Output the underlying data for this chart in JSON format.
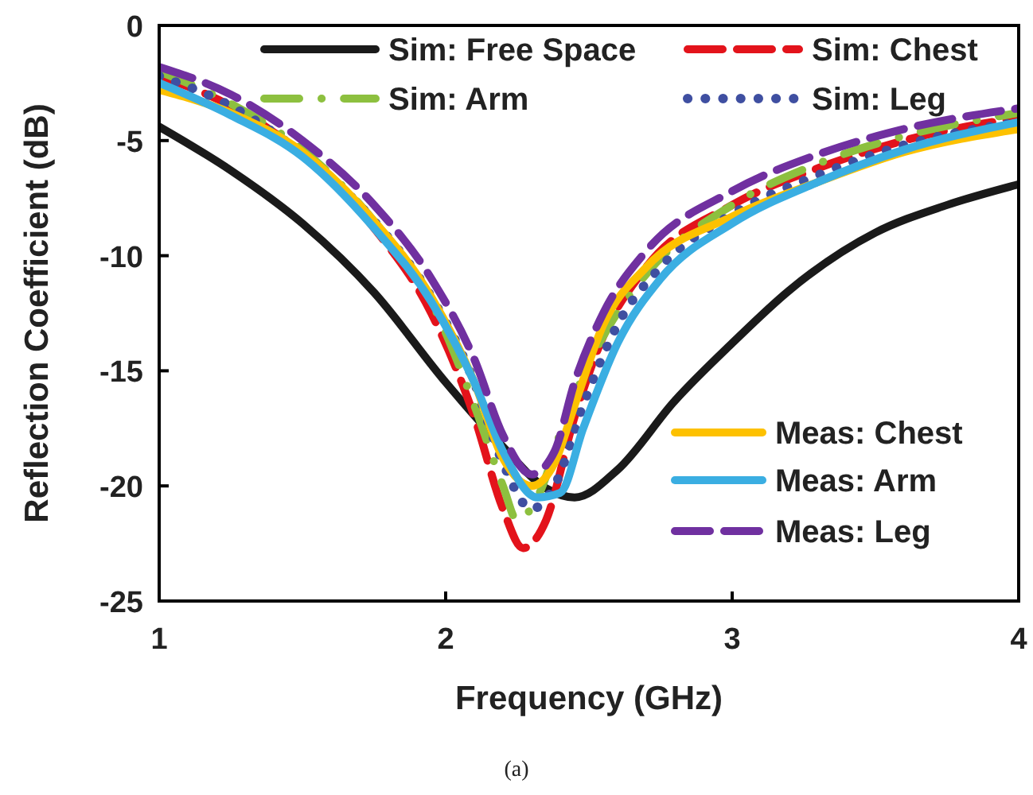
{
  "chart_data": {
    "type": "line",
    "xlabel": "Frequency (GHz)",
    "ylabel": "Reflection Coefficient (dB)",
    "xlim": [
      1,
      4
    ],
    "xticks": [
      1,
      2,
      3,
      4
    ],
    "ylim": [
      -25,
      0
    ],
    "yticks": [
      -25,
      -20,
      -15,
      -10,
      -5,
      0
    ],
    "grid": false,
    "legend": "top",
    "annotations": [
      "(a)"
    ],
    "series": [
      {
        "name": "Sim: Free Space",
        "color": "#1a1a1a",
        "line_style": "solid",
        "x": [
          1,
          1.25,
          1.5,
          1.75,
          2,
          2.2,
          2.35,
          2.45,
          2.6,
          2.8,
          3,
          3.2,
          3.5,
          3.75,
          4
        ],
        "values": [
          -4.4,
          -6.3,
          -8.6,
          -11.6,
          -15.5,
          -18.3,
          -20.1,
          -20.5,
          -19.3,
          -16.3,
          -13.8,
          -11.5,
          -9.0,
          -7.8,
          -6.9
        ]
      },
      {
        "name": "Sim: Chest",
        "color": "#e3131b",
        "line_style": "dashed",
        "x": [
          1,
          1.25,
          1.5,
          1.75,
          1.95,
          2.1,
          2.2,
          2.27,
          2.35,
          2.45,
          2.55,
          2.7,
          3,
          3.3,
          3.6,
          4
        ],
        "values": [
          -2.2,
          -3.5,
          -5.6,
          -8.8,
          -12.5,
          -17,
          -21,
          -22.7,
          -21.5,
          -17,
          -13.5,
          -10.5,
          -7.8,
          -6.2,
          -5.0,
          -4.0
        ]
      },
      {
        "name": "Sim: Arm",
        "color": "#8dc03f",
        "line_style": "dashdot",
        "x": [
          1,
          1.25,
          1.5,
          1.75,
          1.95,
          2.1,
          2.2,
          2.25,
          2.32,
          2.42,
          2.55,
          2.7,
          3,
          3.3,
          3.6,
          4
        ],
        "values": [
          -2.0,
          -3.4,
          -5.4,
          -8.5,
          -12,
          -16.5,
          -20,
          -21.5,
          -20.5,
          -17,
          -13.5,
          -10.8,
          -7.8,
          -6.0,
          -4.8,
          -3.8
        ]
      },
      {
        "name": "Sim: Leg",
        "color": "#3f4fa1",
        "line_style": "dotted",
        "x": [
          1,
          1.25,
          1.5,
          1.75,
          1.95,
          2.1,
          2.2,
          2.3,
          2.38,
          2.48,
          2.6,
          2.75,
          3,
          3.3,
          3.6,
          4
        ],
        "values": [
          -2.2,
          -3.5,
          -5.6,
          -8.5,
          -11.8,
          -15.5,
          -19,
          -21,
          -20,
          -16.5,
          -13,
          -10.5,
          -8.2,
          -6.5,
          -5.2,
          -4.2
        ]
      },
      {
        "name": "Meas: Chest",
        "color": "#fdc100",
        "line_style": "solid",
        "x": [
          1,
          1.25,
          1.5,
          1.75,
          1.95,
          2.1,
          2.2,
          2.3,
          2.38,
          2.45,
          2.55,
          2.7,
          3,
          3.3,
          3.6,
          4
        ],
        "values": [
          -2.8,
          -3.8,
          -5.5,
          -8.5,
          -11.8,
          -15.5,
          -18.8,
          -20,
          -19,
          -16.5,
          -13,
          -10.5,
          -8.3,
          -6.8,
          -5.5,
          -4.5
        ]
      },
      {
        "name": "Meas: Arm",
        "color": "#3aaee2",
        "line_style": "solid",
        "x": [
          1,
          1.25,
          1.5,
          1.75,
          1.95,
          2.1,
          2.2,
          2.32,
          2.4,
          2.48,
          2.6,
          2.75,
          3,
          3.3,
          3.6,
          4
        ],
        "values": [
          -2.5,
          -3.9,
          -5.7,
          -8.8,
          -12,
          -15.5,
          -18.5,
          -20.5,
          -20.3,
          -17.5,
          -13.8,
          -11,
          -8.6,
          -6.8,
          -5.4,
          -4.2
        ]
      },
      {
        "name": "Meas: Leg",
        "color": "#7030a0",
        "line_style": "dashed",
        "x": [
          1,
          1.25,
          1.5,
          1.75,
          1.95,
          2.1,
          2.2,
          2.3,
          2.38,
          2.45,
          2.55,
          2.7,
          3,
          3.3,
          3.6,
          4
        ],
        "values": [
          -1.8,
          -3.0,
          -5.0,
          -7.8,
          -11,
          -14.5,
          -17.8,
          -19.5,
          -18.5,
          -15.5,
          -12.5,
          -9.8,
          -7.2,
          -5.6,
          -4.5,
          -3.6
        ]
      }
    ]
  }
}
